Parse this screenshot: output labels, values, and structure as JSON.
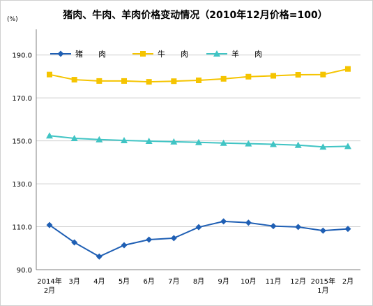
{
  "chart_data": {
    "type": "line",
    "title": "猪肉、牛肉、羊肉价格变动情况（2010年12月价格=100）",
    "unit": "(%)",
    "categories": [
      "2014年\n2月",
      "3月",
      "4月",
      "5月",
      "6月",
      "7月",
      "8月",
      "9月",
      "10月",
      "11月",
      "12月",
      "2015年\n1月",
      "2月"
    ],
    "ylim": [
      90.0,
      200.0
    ],
    "yticks": [
      "90.0",
      "110.0",
      "130.0",
      "150.0",
      "170.0",
      "190.0"
    ],
    "legend_position": "top-left",
    "series": [
      {
        "name": "猪　　肉",
        "color": "#1f5fb4",
        "marker": "diamond",
        "values": [
          110.8,
          102.7,
          96.1,
          101.4,
          104.0,
          104.7,
          109.8,
          112.5,
          111.9,
          110.3,
          109.9,
          108.2,
          109.0
        ]
      },
      {
        "name": "牛　　肉",
        "color": "#f5c400",
        "marker": "square",
        "values": [
          180.9,
          178.5,
          177.9,
          177.9,
          177.5,
          177.8,
          178.2,
          178.9,
          179.9,
          180.3,
          180.8,
          180.9,
          183.5
        ]
      },
      {
        "name": "羊　　肉",
        "color": "#40c4c4",
        "marker": "triangle",
        "values": [
          152.4,
          151.2,
          150.6,
          150.2,
          149.9,
          149.6,
          149.3,
          149.0,
          148.7,
          148.4,
          148.0,
          147.2,
          147.5
        ]
      }
    ]
  }
}
